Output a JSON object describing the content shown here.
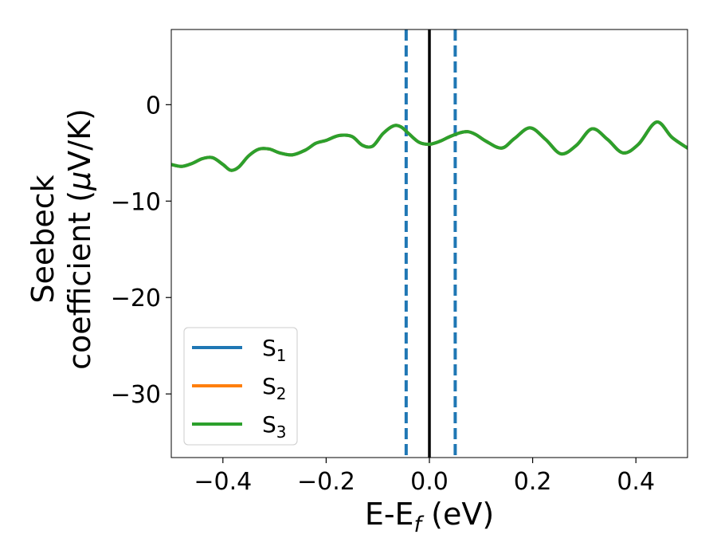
{
  "chart_data": {
    "type": "line",
    "xlabel": "E-E",
    "xlabel_sub": "f",
    "xlabel_suffix": " (eV)",
    "ylabel_line1": "Seebeck",
    "ylabel_line2_prefix": "coefficient  (",
    "ylabel_mu": "μ",
    "ylabel_line2_suffix": "V/K)",
    "xlim": [
      -0.5,
      0.5
    ],
    "ylim": [
      -36.6,
      7.8
    ],
    "xticks": [
      -0.4,
      -0.2,
      0.0,
      0.2,
      0.4
    ],
    "xtick_labels": [
      "−0.4",
      "−0.2",
      "0.0",
      "0.2",
      "0.4"
    ],
    "yticks": [
      0,
      -10,
      -20,
      -30
    ],
    "ytick_labels": [
      "0",
      "−10",
      "−20",
      "−30"
    ],
    "grid": false,
    "legend_position": "lower-left",
    "vertical_lines": [
      {
        "x": -0.045,
        "style": "dashed",
        "color": "#1f77b4"
      },
      {
        "x": 0.05,
        "style": "dashed",
        "color": "#1f77b4"
      },
      {
        "x": 0.0,
        "style": "solid",
        "color": "#000000"
      }
    ],
    "series": [
      {
        "name": "S",
        "sub": "1",
        "color": "#1f77b4",
        "x": [
          -0.5,
          -0.48,
          -0.46,
          -0.44,
          -0.42,
          -0.4,
          -0.385,
          -0.37,
          -0.35,
          -0.33,
          -0.31,
          -0.29,
          -0.265,
          -0.24,
          -0.22,
          -0.2,
          -0.175,
          -0.15,
          -0.13,
          -0.11,
          -0.09,
          -0.07,
          -0.055,
          -0.04,
          -0.02,
          0.0,
          0.02,
          0.04,
          0.06,
          0.075,
          0.09,
          0.11,
          0.14,
          0.165,
          0.195,
          0.225,
          0.255,
          0.285,
          0.315,
          0.345,
          0.375,
          0.405,
          0.44,
          0.47,
          0.5
        ],
        "y": [
          -6.2,
          -6.4,
          -6.1,
          -5.6,
          -5.5,
          -6.2,
          -6.8,
          -6.5,
          -5.3,
          -4.6,
          -4.6,
          -5.0,
          -5.2,
          -4.7,
          -4.0,
          -3.7,
          -3.2,
          -3.3,
          -4.2,
          -4.3,
          -3.0,
          -2.2,
          -2.3,
          -3.0,
          -3.9,
          -4.1,
          -3.8,
          -3.3,
          -2.9,
          -2.8,
          -3.1,
          -3.8,
          -4.5,
          -3.5,
          -2.4,
          -3.6,
          -5.1,
          -4.2,
          -2.5,
          -3.6,
          -5.0,
          -4.1,
          -1.8,
          -3.4,
          -4.5
        ]
      },
      {
        "name": "S",
        "sub": "2",
        "color": "#ff7f0e",
        "x": [
          -0.5,
          -0.48,
          -0.46,
          -0.44,
          -0.42,
          -0.4,
          -0.385,
          -0.37,
          -0.35,
          -0.33,
          -0.31,
          -0.29,
          -0.265,
          -0.24,
          -0.22,
          -0.2,
          -0.175,
          -0.15,
          -0.13,
          -0.11,
          -0.09,
          -0.07,
          -0.055,
          -0.04,
          -0.02,
          0.0,
          0.02,
          0.04,
          0.06,
          0.075,
          0.09,
          0.11,
          0.14,
          0.165,
          0.195,
          0.225,
          0.255,
          0.285,
          0.315,
          0.345,
          0.375,
          0.405,
          0.44,
          0.47,
          0.5
        ],
        "y": [
          -6.2,
          -6.4,
          -6.1,
          -5.6,
          -5.5,
          -6.2,
          -6.8,
          -6.5,
          -5.3,
          -4.6,
          -4.6,
          -5.0,
          -5.2,
          -4.7,
          -4.0,
          -3.7,
          -3.2,
          -3.3,
          -4.2,
          -4.3,
          -3.0,
          -2.2,
          -2.3,
          -3.0,
          -3.9,
          -4.1,
          -3.8,
          -3.3,
          -2.9,
          -2.8,
          -3.1,
          -3.8,
          -4.5,
          -3.5,
          -2.4,
          -3.6,
          -5.1,
          -4.2,
          -2.5,
          -3.6,
          -5.0,
          -4.1,
          -1.8,
          -3.4,
          -4.5
        ]
      },
      {
        "name": "S",
        "sub": "3",
        "color": "#2ca02c",
        "x": [
          -0.5,
          -0.48,
          -0.46,
          -0.44,
          -0.42,
          -0.4,
          -0.385,
          -0.37,
          -0.35,
          -0.33,
          -0.31,
          -0.29,
          -0.265,
          -0.24,
          -0.22,
          -0.2,
          -0.175,
          -0.15,
          -0.13,
          -0.11,
          -0.09,
          -0.07,
          -0.055,
          -0.04,
          -0.02,
          0.0,
          0.02,
          0.04,
          0.06,
          0.075,
          0.09,
          0.11,
          0.14,
          0.165,
          0.195,
          0.225,
          0.255,
          0.285,
          0.315,
          0.345,
          0.375,
          0.405,
          0.44,
          0.47,
          0.5
        ],
        "y": [
          -6.2,
          -6.4,
          -6.1,
          -5.6,
          -5.5,
          -6.2,
          -6.8,
          -6.5,
          -5.3,
          -4.6,
          -4.6,
          -5.0,
          -5.2,
          -4.7,
          -4.0,
          -3.7,
          -3.2,
          -3.3,
          -4.2,
          -4.3,
          -3.0,
          -2.2,
          -2.3,
          -3.0,
          -3.9,
          -4.1,
          -3.8,
          -3.3,
          -2.9,
          -2.8,
          -3.1,
          -3.8,
          -4.5,
          -3.5,
          -2.4,
          -3.6,
          -5.1,
          -4.2,
          -2.5,
          -3.6,
          -5.0,
          -4.1,
          -1.8,
          -3.4,
          -4.5
        ]
      }
    ]
  }
}
